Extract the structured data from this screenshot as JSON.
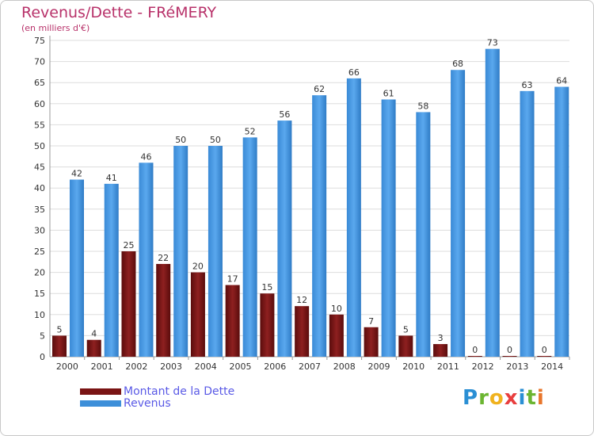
{
  "title": "Revenus/Dette - FRéMERY",
  "subtitle": "(en milliers d'€)",
  "logo": {
    "letters": [
      {
        "ch": "P",
        "color": "#2a8fd4"
      },
      {
        "ch": "r",
        "color": "#6bb531"
      },
      {
        "ch": "o",
        "color": "#f0b21e"
      },
      {
        "ch": "x",
        "color": "#e83e3e"
      },
      {
        "ch": "i",
        "color": "#2a8fd4"
      },
      {
        "ch": "t",
        "color": "#6bb531"
      },
      {
        "ch": "i",
        "color": "#e8762c"
      }
    ]
  },
  "chart_data": {
    "type": "bar",
    "categories": [
      "2000",
      "2001",
      "2002",
      "2003",
      "2004",
      "2005",
      "2006",
      "2007",
      "2008",
      "2009",
      "2010",
      "2011",
      "2012",
      "2013",
      "2014"
    ],
    "series": [
      {
        "name": "Montant de la Dette",
        "color": "#7a1414",
        "values": [
          5,
          4,
          25,
          22,
          20,
          17,
          15,
          12,
          10,
          7,
          5,
          3,
          0,
          0,
          0
        ]
      },
      {
        "name": "Revenus",
        "color": "#3d8fd9",
        "values": [
          42,
          41,
          46,
          50,
          50,
          52,
          56,
          62,
          66,
          61,
          58,
          68,
          73,
          63,
          64
        ]
      }
    ],
    "yticks": [
      0,
      5,
      10,
      15,
      20,
      25,
      30,
      35,
      40,
      45,
      50,
      55,
      60,
      65,
      70,
      75
    ],
    "ylim": [
      0,
      75
    ],
    "grid": true,
    "legend": "bottom-left"
  }
}
